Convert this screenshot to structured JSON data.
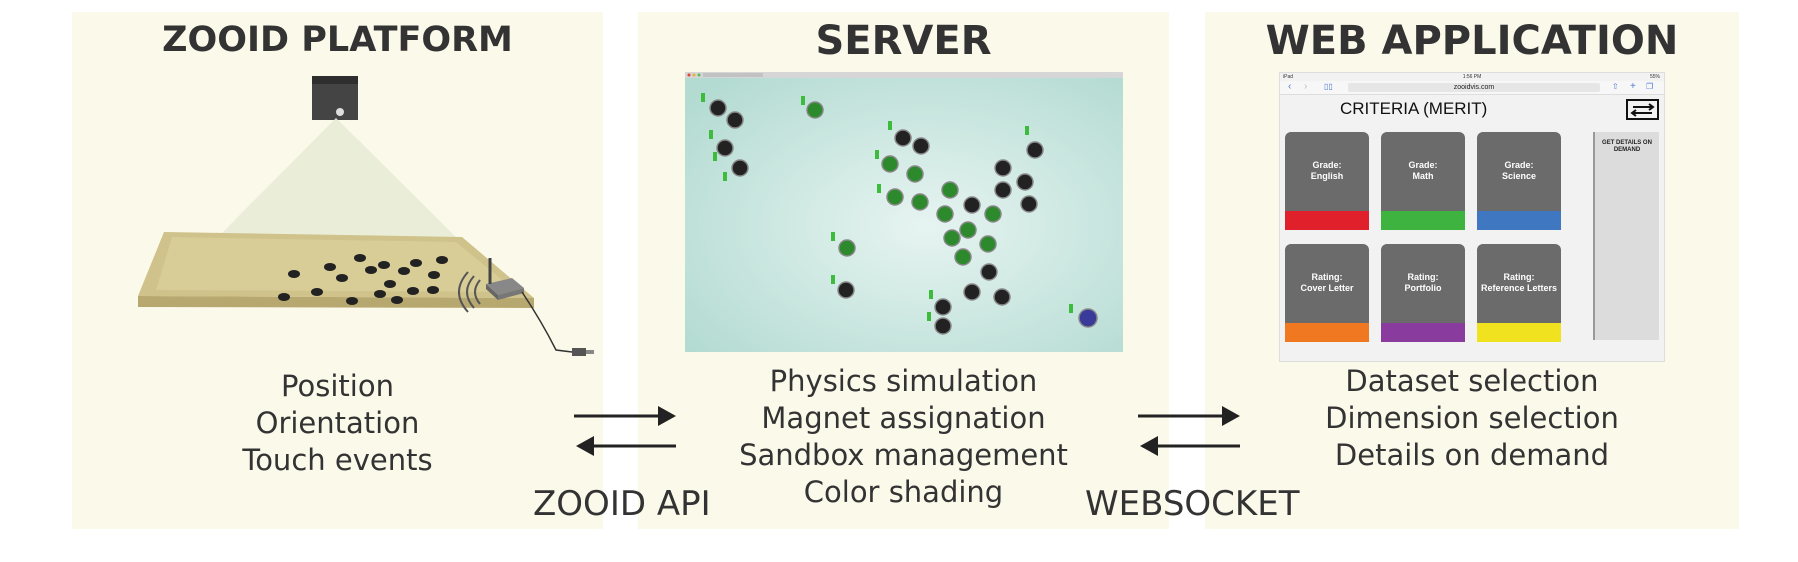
{
  "panels": {
    "platform": {
      "title": "ZOOID PLATFORM",
      "lines": [
        "Position",
        "Orientation",
        "Touch events"
      ]
    },
    "server": {
      "title": "SERVER",
      "lines": [
        "Physics simulation",
        "Magnet assignation",
        "Sandbox management",
        "Color shading"
      ]
    },
    "webapp": {
      "title": "WEB APPLICATION",
      "lines": [
        "Dataset selection",
        "Dimension selection",
        "Details on demand"
      ]
    }
  },
  "connectors": {
    "left_label": "ZOOID API",
    "right_label": "WEBSOCKET"
  },
  "tablet": {
    "status_left": "iPad",
    "status_time": "1:56 PM",
    "status_battery": "55%",
    "url": "zooidvis.com",
    "heading": "CRITERIA (MERIT)",
    "details_label": "GET DETAILS ON DEMAND",
    "tiles": [
      {
        "line1": "Grade:",
        "line2": "English",
        "color": "#e0202b"
      },
      {
        "line1": "Grade:",
        "line2": "Math",
        "color": "#3fb33f"
      },
      {
        "line1": "Grade:",
        "line2": "Science",
        "color": "#3f78c0"
      },
      {
        "line1": "Rating:",
        "line2": "Cover Letter",
        "color": "#f07820"
      },
      {
        "line1": "Rating:",
        "line2": "Portfolio",
        "color": "#8a3c9e"
      },
      {
        "line1": "Rating:",
        "line2": "Reference Letters",
        "color": "#f0e21e"
      }
    ]
  },
  "colors": {
    "panel_bg": "#fbf9ea",
    "table_top": "#cfc28b",
    "robot": "#222222",
    "robot_green": "#2c8a2c",
    "sim_bg": "#c6e5de"
  }
}
